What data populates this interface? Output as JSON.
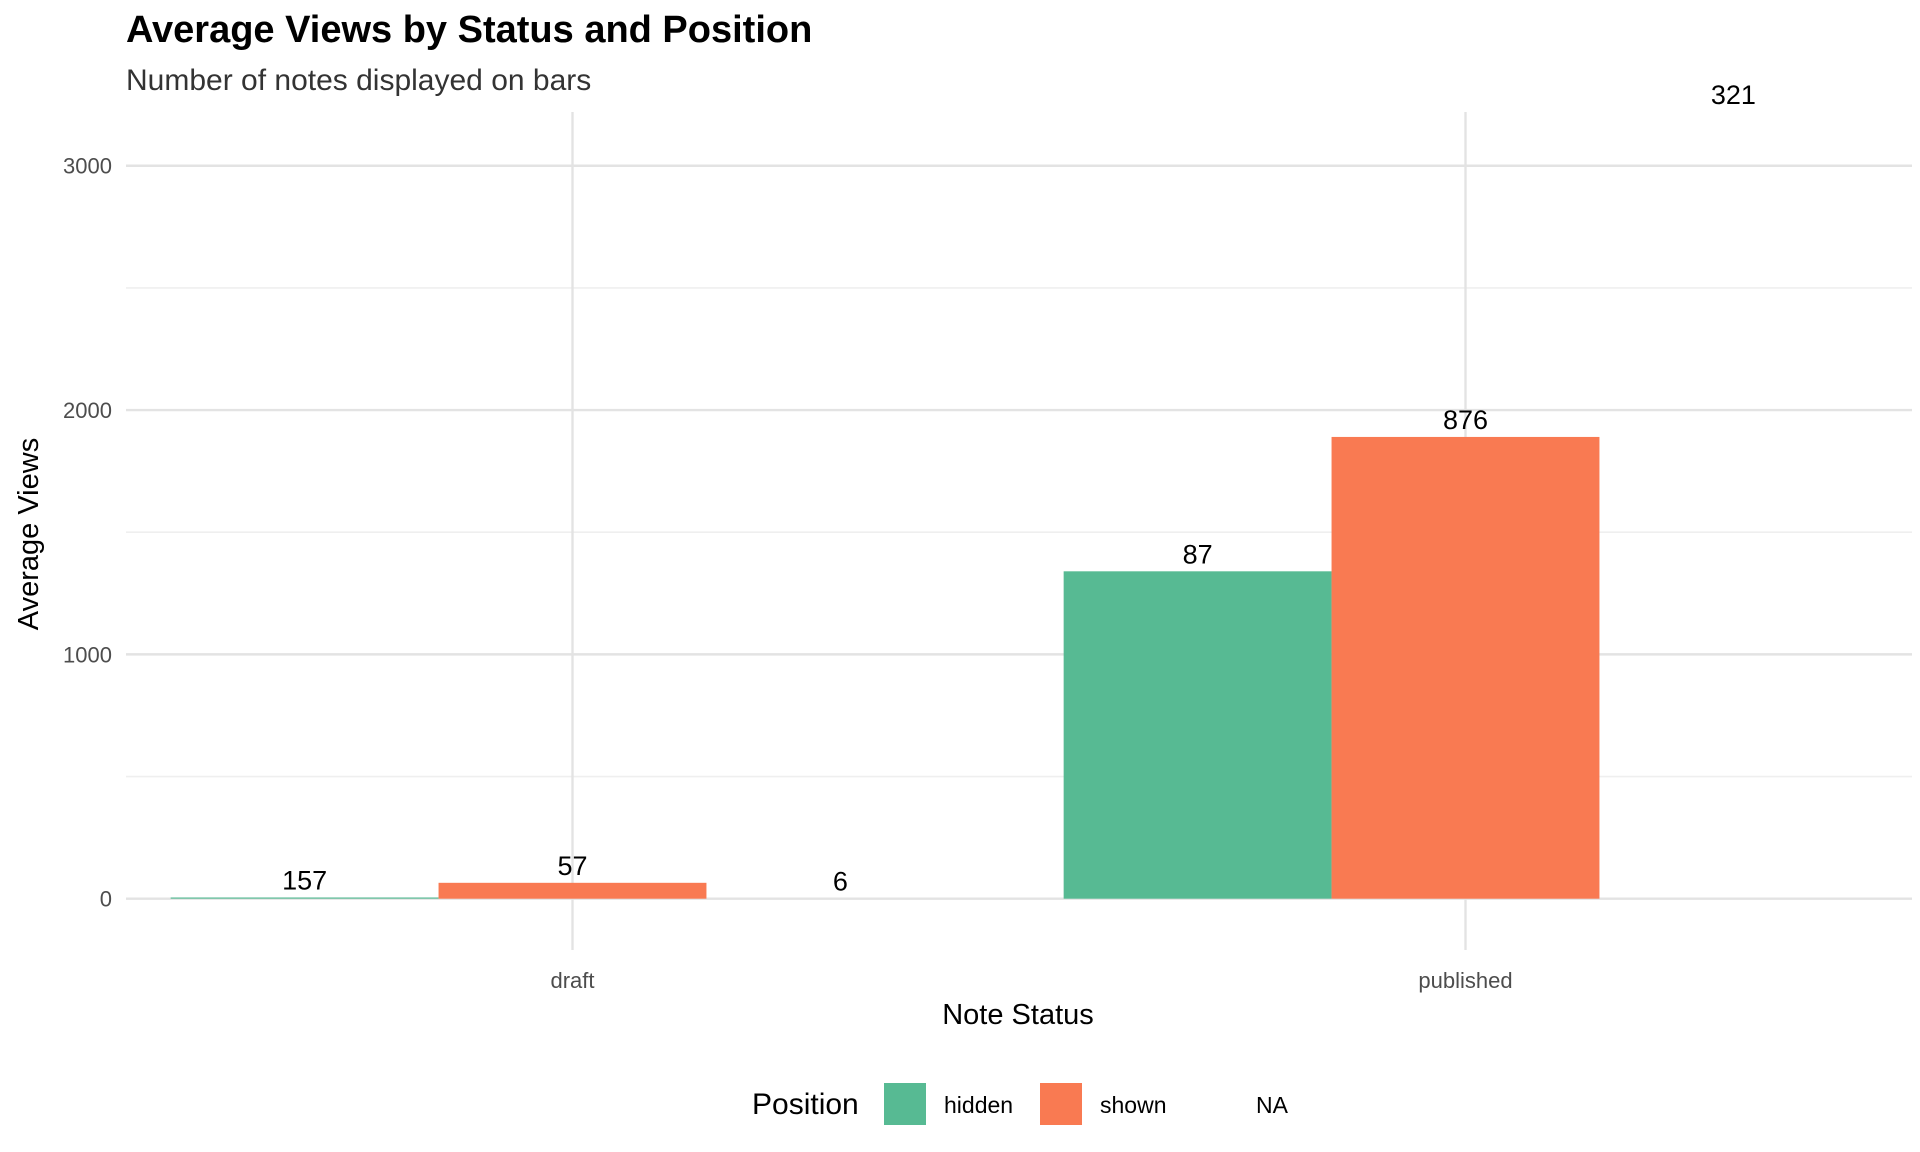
{
  "chart_data": {
    "type": "bar",
    "title": "Average Views by Status and Position",
    "subtitle": "Number of notes displayed on bars",
    "xlabel": "Note Status",
    "ylabel": "Average Views",
    "categories": [
      "draft",
      "published"
    ],
    "ylim": [
      -210,
      3220
    ],
    "yticks": [
      0,
      1000,
      2000,
      3000
    ],
    "grid": true,
    "legend": {
      "title": "Position",
      "position": "bottom",
      "entries": [
        {
          "label": "hidden",
          "color": "#57BA93"
        },
        {
          "label": "shown",
          "color": "#F97A52"
        },
        {
          "label": "NA",
          "color": null
        }
      ]
    },
    "series": [
      {
        "name": "hidden",
        "color": "#57BA93",
        "values": [
          5,
          1340
        ],
        "labels": [
          "157",
          "87"
        ]
      },
      {
        "name": "shown",
        "color": "#F97A52",
        "values": [
          65,
          1890
        ],
        "labels": [
          "57",
          "876"
        ]
      },
      {
        "name": "NA",
        "color": null,
        "values": [
          0,
          3220
        ],
        "labels": [
          "6",
          "321"
        ]
      }
    ]
  }
}
